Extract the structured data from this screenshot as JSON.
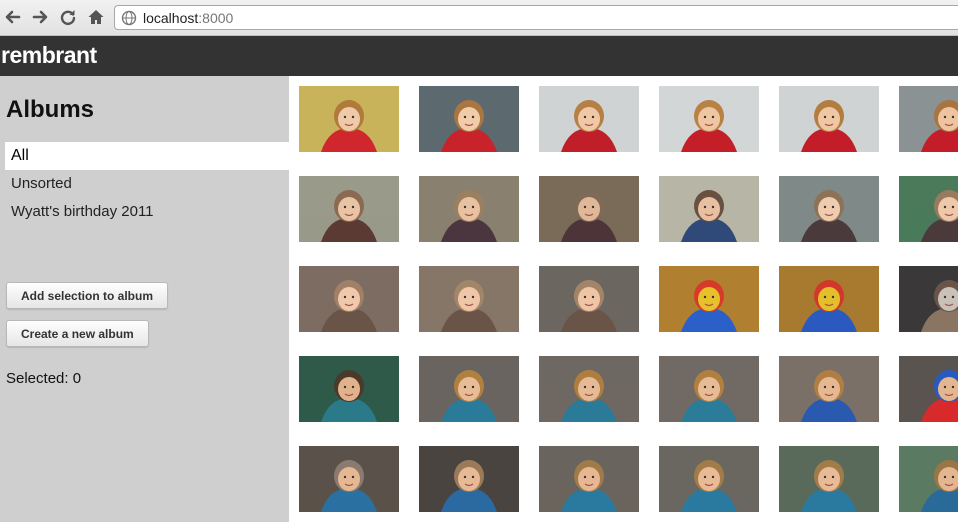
{
  "browser": {
    "url_host": "localhost",
    "url_port": ":8000"
  },
  "app": {
    "brand": "rembrant"
  },
  "sidebar": {
    "title": "Albums",
    "albums": [
      {
        "label": "All",
        "selected": true
      },
      {
        "label": "Unsorted",
        "selected": false
      },
      {
        "label": "Wyatt's birthday 2011",
        "selected": false
      }
    ],
    "add_selection_label": "Add selection to album",
    "create_album_label": "Create a new album",
    "selected_label": "Selected: 0"
  },
  "photos": [
    [
      {
        "bg": "#c9b35a",
        "fg": "#d0262e",
        "face": "#f0c9a8",
        "hair": "#b07a3a"
      },
      {
        "bg": "#5c6a70",
        "fg": "#c8222a",
        "face": "#f2cba8",
        "hair": "#a97540"
      },
      {
        "bg": "#cfd3d4",
        "fg": "#c01f2a",
        "face": "#f0c8a6",
        "hair": "#b58044"
      },
      {
        "bg": "#d3d6d6",
        "fg": "#c41e28",
        "face": "#efc6a2",
        "hair": "#b98245"
      },
      {
        "bg": "#d0d3d4",
        "fg": "#c21d28",
        "face": "#f0c7a4",
        "hair": "#b47d40"
      },
      {
        "bg": "#8b9294",
        "fg": "#c21d28",
        "face": "#eec4a0",
        "hair": "#a87440"
      }
    ],
    [
      {
        "bg": "#9a9a8a",
        "fg": "#5a3a32",
        "face": "#e9c4a4",
        "hair": "#8a6a50"
      },
      {
        "bg": "#8a8070",
        "fg": "#4b3640",
        "face": "#e8c2a0",
        "hair": "#9b8060"
      },
      {
        "bg": "#7a6a58",
        "fg": "#4c3438",
        "face": "#e0b898",
        "hair": "#7e6a56"
      },
      {
        "bg": "#b7b6a6",
        "fg": "#2f4a78",
        "face": "#e6c0a0",
        "hair": "#6a5040"
      },
      {
        "bg": "#7f8a88",
        "fg": "#4a3a3c",
        "face": "#f0ccaf",
        "hair": "#8e7258"
      },
      {
        "bg": "#4a7a5a",
        "fg": "#4a3a3c",
        "face": "#eec8a8",
        "hair": "#9a7a5e"
      }
    ],
    [
      {
        "bg": "#7d6c62",
        "fg": "#6a5448",
        "face": "#f1c8ab",
        "hair": "#a08066"
      },
      {
        "bg": "#857668",
        "fg": "#6a5448",
        "face": "#f0c6a8",
        "hair": "#a3856a"
      },
      {
        "bg": "#6c6660",
        "fg": "#6a5448",
        "face": "#efc5a6",
        "hair": "#a48468"
      },
      {
        "bg": "#b08030",
        "fg": "#2a60c8",
        "face": "#e8c02a",
        "hair": "#d83a2a"
      },
      {
        "bg": "#a87a30",
        "fg": "#2a5ac0",
        "face": "#e5bf2a",
        "hair": "#d2382a"
      },
      {
        "bg": "#3a3838",
        "fg": "#8a7462",
        "face": "#c9c0b8",
        "hair": "#6a5448"
      }
    ],
    [
      {
        "bg": "#2f5a4a",
        "fg": "#2a7a8a",
        "face": "#e2b28c",
        "hair": "#4a3a2a"
      },
      {
        "bg": "#6a6460",
        "fg": "#2a7a9a",
        "face": "#e8bc96",
        "hair": "#b08040"
      },
      {
        "bg": "#6e6862",
        "fg": "#2a7a98",
        "face": "#e6ba94",
        "hair": "#ae7e40"
      },
      {
        "bg": "#716a64",
        "fg": "#2a7c98",
        "face": "#e7bb95",
        "hair": "#b18040"
      },
      {
        "bg": "#7a7068",
        "fg": "#2a5ab0",
        "face": "#e5b892",
        "hair": "#b07e42"
      },
      {
        "bg": "#5a5450",
        "fg": "#d82a2a",
        "face": "#e4b690",
        "hair": "#2a5ac0"
      }
    ],
    [
      {
        "bg": "#5a524a",
        "fg": "#2a70a0",
        "face": "#e6b892",
        "hair": "#8a7a70"
      },
      {
        "bg": "#4a4440",
        "fg": "#2a6aa0",
        "face": "#e7b994",
        "hair": "#9a7a58"
      },
      {
        "bg": "#6a645e",
        "fg": "#2a7aa0",
        "face": "#e6b792",
        "hair": "#a07a48"
      },
      {
        "bg": "#6a6660",
        "fg": "#2a7aa0",
        "face": "#e8bb96",
        "hair": "#a27c48"
      },
      {
        "bg": "#5a6a5a",
        "fg": "#2a7aa0",
        "face": "#e8bb96",
        "hair": "#a27c48"
      },
      {
        "bg": "#5a7a62",
        "fg": "#2a6a98",
        "face": "#e4b690",
        "hair": "#9a7644"
      }
    ]
  ]
}
